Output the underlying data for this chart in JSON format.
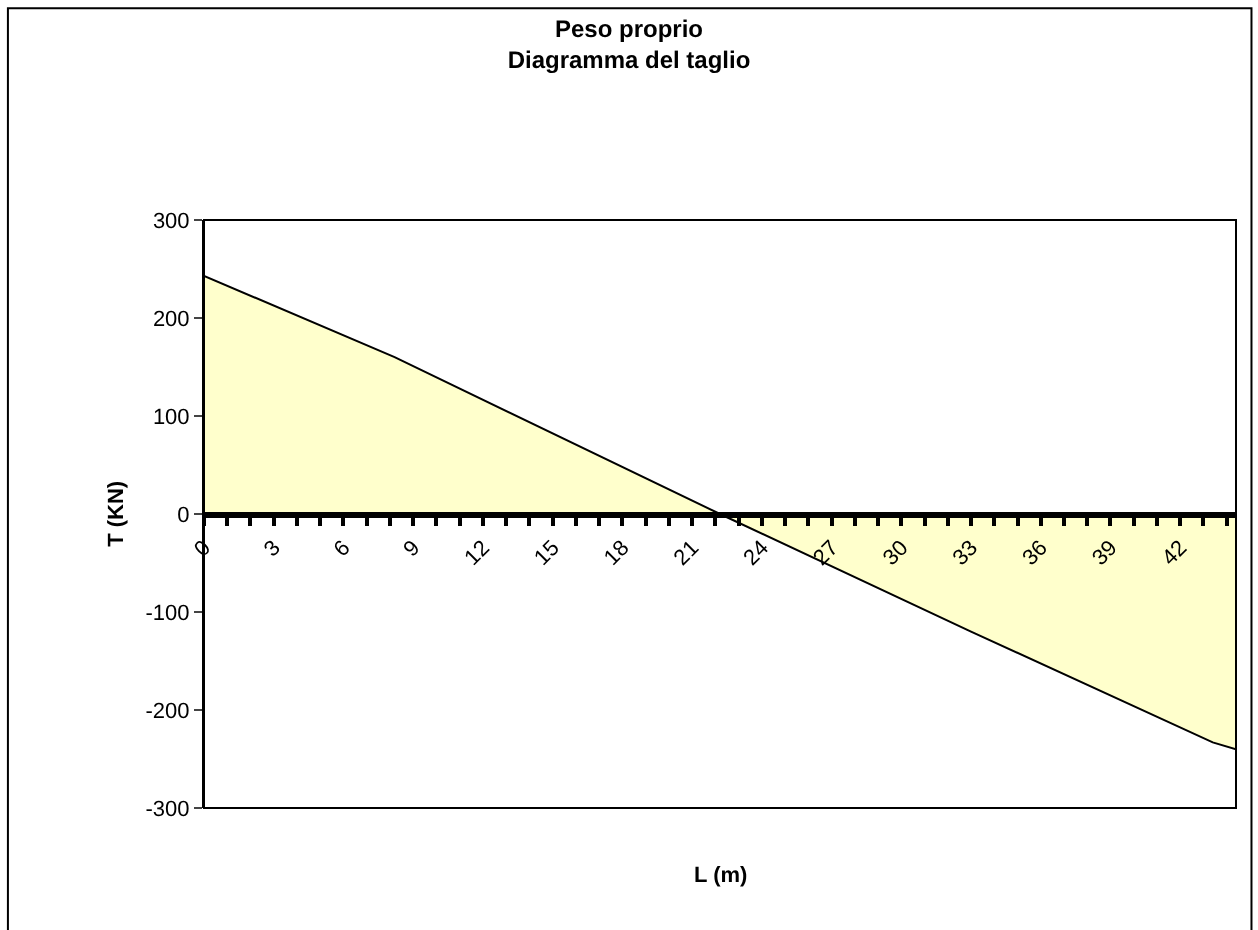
{
  "chart_data": {
    "type": "area",
    "title": "Peso proprio\nDiagramma del taglio",
    "xlabel": "L (m)",
    "ylabel": "T (KN)",
    "x": [
      0,
      8.2,
      22.2,
      33,
      43.4,
      44.4
    ],
    "series": [
      {
        "color": "#ffffcc",
        "values": [
          243,
          160,
          0,
          -120,
          -233,
          -240
        ]
      }
    ],
    "xlim": [
      0,
      44.4
    ],
    "xticks": [
      0,
      3,
      6,
      9,
      12,
      15,
      18,
      21,
      24,
      27,
      30,
      33,
      36,
      39,
      42
    ],
    "ylim": [
      -300,
      300
    ],
    "yticks": [
      -300,
      -200,
      -100,
      0,
      100,
      200,
      300
    ]
  }
}
